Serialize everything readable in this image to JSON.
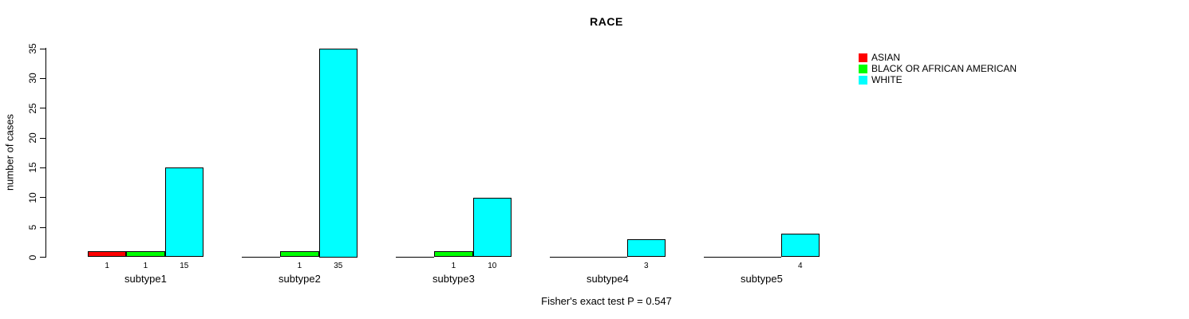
{
  "window": {
    "background": "#ffffff"
  },
  "chart_data": {
    "type": "bar",
    "title": "RACE",
    "ylabel": "number of cases",
    "xlabel": "",
    "categories": [
      "subtype1",
      "subtype2",
      "subtype3",
      "subtype4",
      "subtype5"
    ],
    "series": [
      {
        "name": "ASIAN",
        "color": "#ff0000",
        "values": [
          1,
          0,
          0,
          0,
          0
        ]
      },
      {
        "name": "BLACK OR AFRICAN AMERICAN",
        "color": "#00ff00",
        "values": [
          1,
          1,
          1,
          0,
          0
        ]
      },
      {
        "name": "WHITE",
        "color": "#00ffff",
        "values": [
          15,
          35,
          10,
          3,
          4
        ]
      }
    ],
    "yticks": [
      0,
      5,
      10,
      15,
      20,
      25,
      30,
      35
    ],
    "ylim": [
      0,
      35
    ],
    "grid": false,
    "bar_value_labels_shown": true,
    "value_labels_hide_zero": true,
    "legend_position": "top-right",
    "annotation": "Fisher's exact test P = 0.547",
    "axis_color": "#000000",
    "bar_border_color": "#000000",
    "text_color": "#000000"
  }
}
